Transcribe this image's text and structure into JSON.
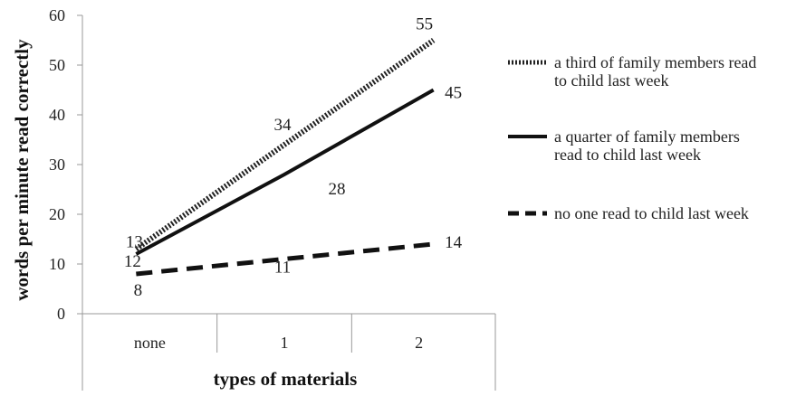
{
  "chart_data": {
    "type": "line",
    "xlabel": "types of materials",
    "ylabel": "words per minute read correctly",
    "categories": [
      "none",
      "1",
      "2"
    ],
    "ylim": [
      0,
      60
    ],
    "yticks": [
      0,
      10,
      20,
      30,
      40,
      50,
      60
    ],
    "grid": false,
    "legend_position": "right",
    "series": [
      {
        "name": "a third of family members read to child last week",
        "legend_lines": [
          "a third of family members read",
          "to child last week"
        ],
        "values": [
          13,
          34,
          55
        ],
        "style": "dotted",
        "color": "#222222"
      },
      {
        "name": "a quarter of family members read to child last week",
        "legend_lines": [
          "a quarter of family members",
          "read to child last week"
        ],
        "values": [
          12,
          28,
          45
        ],
        "style": "solid",
        "color": "#111111"
      },
      {
        "name": "no one read to child last week",
        "legend_lines": [
          "no one read to child last week"
        ],
        "values": [
          8,
          11,
          14
        ],
        "style": "dashed",
        "color": "#111111"
      }
    ]
  }
}
